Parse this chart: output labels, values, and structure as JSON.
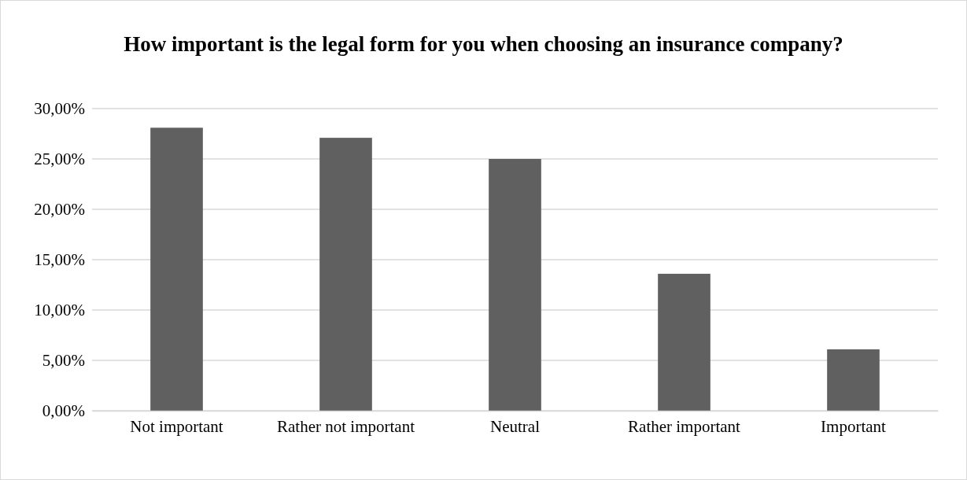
{
  "chart_data": {
    "type": "bar",
    "title": "How important is the legal form for you when choosing an insurance company?",
    "categories": [
      "Not important",
      "Rather not important",
      "Neutral",
      "Rather important",
      "Important"
    ],
    "values": [
      28.1,
      27.1,
      25.0,
      13.6,
      6.1
    ],
    "color": "#606060",
    "ylim": [
      0,
      30
    ],
    "yticks": [
      {
        "value": 0,
        "label": "0,00%"
      },
      {
        "value": 5,
        "label": "5,00%"
      },
      {
        "value": 10,
        "label": "10,00%"
      },
      {
        "value": 15,
        "label": "15,00%"
      },
      {
        "value": 20,
        "label": "20,00%"
      },
      {
        "value": 25,
        "label": "25,00%"
      },
      {
        "value": 30,
        "label": "30,00%"
      }
    ],
    "grid": "y"
  }
}
